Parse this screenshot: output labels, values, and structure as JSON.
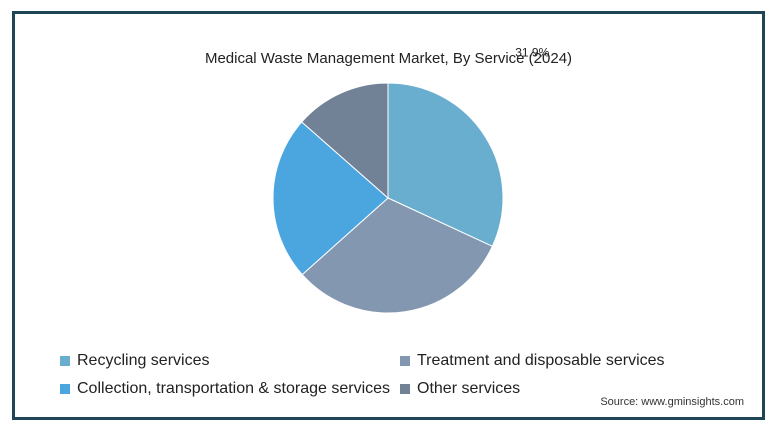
{
  "chart_data": {
    "type": "pie",
    "title": "Medical Waste Management Market, By Service (2024)",
    "categories": [
      "Recycling services",
      "Treatment and disposable services",
      "Collection, transportation & storage services",
      "Other services"
    ],
    "values": [
      31.9,
      31.5,
      23.1,
      13.5
    ],
    "data_labels": [
      "31.9%",
      "",
      "",
      ""
    ],
    "colors": [
      "#6aaecf",
      "#8497b0",
      "#4ba6e0",
      "#718196"
    ],
    "legend_placement": "bottom"
  },
  "source": "Source: www.gminsights.com"
}
